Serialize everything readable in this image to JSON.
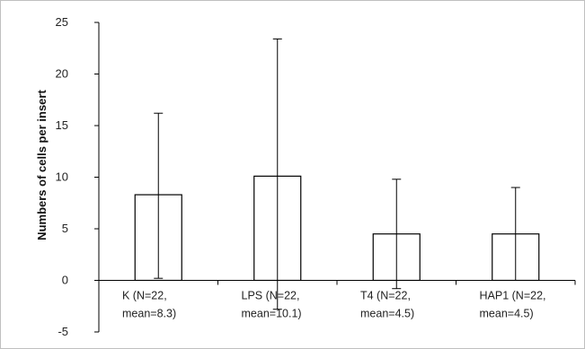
{
  "chart_data": {
    "type": "bar",
    "title": "",
    "xlabel": "",
    "ylabel": "Numbers of cells per insert",
    "ylim": [
      -5,
      25
    ],
    "yticks": [
      -5,
      0,
      5,
      10,
      15,
      20,
      25
    ],
    "grid": false,
    "legend": "none",
    "categories": [
      {
        "line1": "K (N=22,",
        "line2": "mean=8.3)"
      },
      {
        "line1": "LPS (N=22,",
        "line2": "mean=10.1)"
      },
      {
        "line1": "T4 (N=22,",
        "line2": "mean=4.5)"
      },
      {
        "line1": "HAP1 (N=22,",
        "line2": "mean=4.5)"
      }
    ],
    "values": [
      8.3,
      10.1,
      4.5,
      4.5
    ],
    "error_plus": [
      7.9,
      13.3,
      5.3,
      4.5
    ],
    "error_minus": [
      8.1,
      12.9,
      5.3,
      4.5
    ],
    "bar_fill": "#ffffff",
    "bar_stroke": "#000000",
    "axis_color": "#000000",
    "frame_color": "#bfbfbf"
  }
}
